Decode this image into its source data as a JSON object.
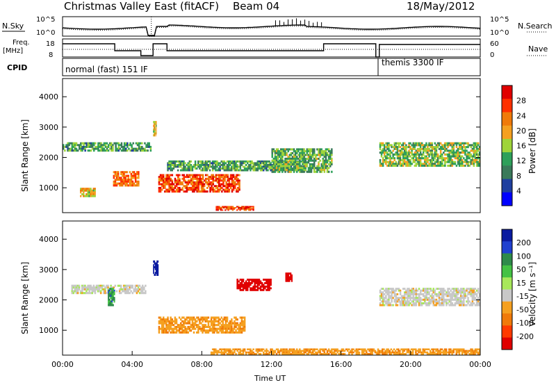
{
  "header": {
    "title": "Christmas Valley East (fitACF)",
    "beam": "Beam 04",
    "date": "18/May/2012"
  },
  "panels": {
    "nsky": {
      "left_label": "N.Sky",
      "y_top": "10^5",
      "y_bottom": "10^0",
      "right_label": "N.Search",
      "right_top": "10^5",
      "right_bottom": "10^0"
    },
    "freq": {
      "left_label_1": "Freq.",
      "left_label_2": "[MHz]",
      "y_top": "18",
      "y_bottom": "8",
      "right_label": "Nave",
      "right_top": "60",
      "right_bottom": "0"
    },
    "cpid": {
      "label": "CPID",
      "mode_1": "normal (fast) 151 IF",
      "mode_2": "themis 3300 IF"
    }
  },
  "time_axis": {
    "label": "Time UT",
    "ticks": [
      "00:00",
      "04:00",
      "08:00",
      "12:00",
      "16:00",
      "20:00",
      "00:00"
    ]
  },
  "chart_data": [
    {
      "type": "heatmap",
      "title": "Power",
      "ylabel": "Slant Range [km]",
      "xlabel": "",
      "xlim": [
        0,
        24
      ],
      "ylim": [
        180,
        4600
      ],
      "yticks": [
        1000,
        2000,
        3000,
        4000
      ],
      "colorbar": {
        "label": "Power [dB]",
        "ticks": [
          "4",
          "8",
          "12",
          "16",
          "20",
          "24",
          "28"
        ],
        "colors": [
          "#0000ff",
          "#1f3f9f",
          "#3a7a5a",
          "#2ea05a",
          "#9fd43a",
          "#f5a020",
          "#f07a0a",
          "#ff3000",
          "#e00000"
        ]
      },
      "regions": [
        {
          "t": [
            1.0,
            1.9
          ],
          "r": [
            700,
            1000
          ],
          "level": 0.6
        },
        {
          "t": [
            2.9,
            4.4
          ],
          "r": [
            1050,
            1550
          ],
          "level": 0.75
        },
        {
          "t": [
            0.0,
            5.1
          ],
          "r": [
            2200,
            2500
          ],
          "level": 0.35
        },
        {
          "t": [
            5.2,
            5.4
          ],
          "r": [
            2700,
            3200
          ],
          "level": 0.6
        },
        {
          "t": [
            5.5,
            10.2
          ],
          "r": [
            850,
            1450
          ],
          "level": 0.85
        },
        {
          "t": [
            6.0,
            14.0
          ],
          "r": [
            1550,
            1900
          ],
          "level": 0.35
        },
        {
          "t": [
            8.8,
            11.0
          ],
          "r": [
            250,
            400
          ],
          "level": 0.9
        },
        {
          "t": [
            12.0,
            15.5
          ],
          "r": [
            1500,
            2300
          ],
          "level": 0.4
        },
        {
          "t": [
            18.2,
            24.0
          ],
          "r": [
            1700,
            2500
          ],
          "level": 0.45
        }
      ]
    },
    {
      "type": "heatmap",
      "title": "Velocity",
      "ylabel": "Slant Range [km]",
      "xlabel": "Time UT",
      "xlim": [
        0,
        24
      ],
      "ylim": [
        180,
        4600
      ],
      "yticks": [
        1000,
        2000,
        3000,
        4000
      ],
      "colorbar": {
        "label": "Velocity [m s⁻¹]",
        "ticks": [
          "200",
          "100",
          "50",
          "15",
          "-15",
          "-50",
          "-100",
          "-200"
        ],
        "colors": [
          "#0a1aa0",
          "#2040d0",
          "#2e8a4a",
          "#44c244",
          "#a8e85a",
          "#c8c8c8",
          "#f5a020",
          "#f07a0a",
          "#ff3a00",
          "#e00000"
        ]
      },
      "regions": [
        {
          "t": [
            0.5,
            4.8
          ],
          "r": [
            2200,
            2500
          ],
          "value": 0
        },
        {
          "t": [
            2.6,
            3.0
          ],
          "r": [
            1800,
            2400
          ],
          "value": 60
        },
        {
          "t": [
            5.2,
            5.5
          ],
          "r": [
            2800,
            3300
          ],
          "value": 200
        },
        {
          "t": [
            5.5,
            10.5
          ],
          "r": [
            900,
            1450
          ],
          "value": -40
        },
        {
          "t": [
            10.0,
            12.0
          ],
          "r": [
            2300,
            2700
          ],
          "value": -200
        },
        {
          "t": [
            12.8,
            13.2
          ],
          "r": [
            2600,
            2900
          ],
          "value": -220
        },
        {
          "t": [
            8.5,
            24.0
          ],
          "r": [
            200,
            400
          ],
          "value": -40
        },
        {
          "t": [
            18.2,
            24.0
          ],
          "r": [
            1800,
            2400
          ],
          "value": 0
        }
      ]
    }
  ]
}
